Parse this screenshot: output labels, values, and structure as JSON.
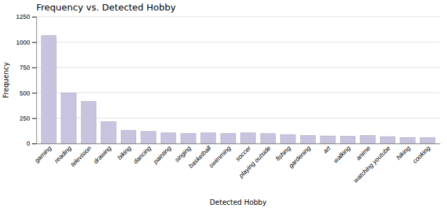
{
  "chart_data": {
    "type": "bar",
    "title": "Frequency vs. Detected Hobby",
    "xlabel": "Detected Hobby",
    "ylabel": "Frequency",
    "categories": [
      "gaming",
      "reading",
      "television",
      "drawing",
      "biking",
      "dancing",
      "painting",
      "singing",
      "basketball",
      "swimming",
      "soccer",
      "playing outside",
      "fishing",
      "gardening",
      "art",
      "walking",
      "anime",
      "watching youtube",
      "hiking",
      "cooking"
    ],
    "values": [
      1065,
      500,
      415,
      215,
      130,
      120,
      105,
      100,
      105,
      100,
      105,
      98,
      88,
      80,
      75,
      72,
      80,
      68,
      60,
      58
    ],
    "color": "#c8c3de",
    "ylim": [
      0,
      1250
    ],
    "yticks": [
      0,
      250,
      500,
      750,
      1000,
      1250
    ],
    "grid": true
  }
}
